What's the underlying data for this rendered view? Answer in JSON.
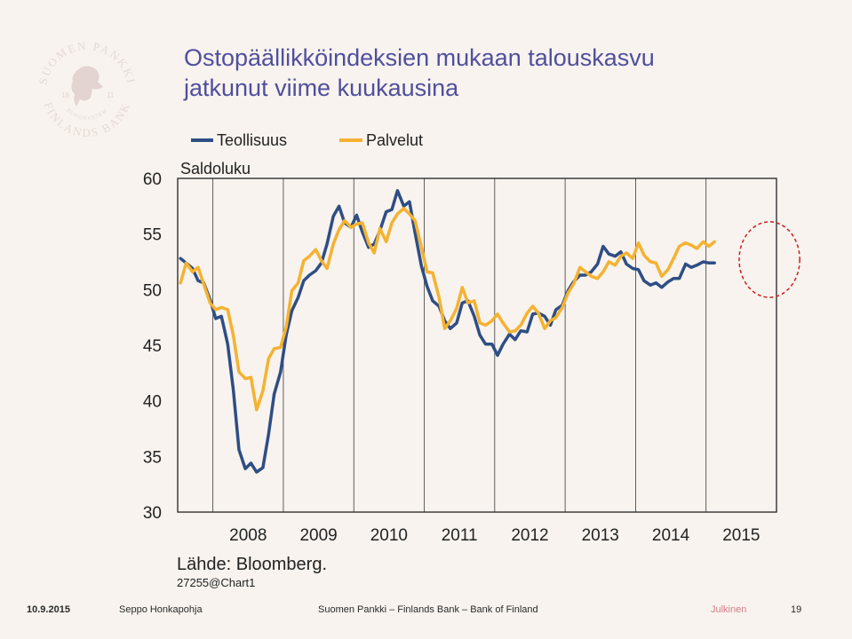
{
  "title_lines": [
    "Ostopäällikköindeksien mukaan talouskasvu",
    "jatkunut viime kuukausina"
  ],
  "logo": {
    "text_top": "SUOMEN PANKKI",
    "text_bottom": "FINLANDS BANK",
    "text_inner": "EUROSYSTEM",
    "year_left": "18",
    "year_right": "11",
    "icon": "lion-crest-icon"
  },
  "chart_data": {
    "type": "line",
    "ylabel": "Saldoluku",
    "ylim": [
      30,
      60
    ],
    "yticks": [
      30,
      35,
      40,
      45,
      50,
      55,
      60
    ],
    "xlim": [
      2007.5,
      2016
    ],
    "xticks": [
      {
        "label": "2008",
        "value": 2008.5
      },
      {
        "label": "2009",
        "value": 2009.5
      },
      {
        "label": "2010",
        "value": 2010.5
      },
      {
        "label": "2011",
        "value": 2011.5
      },
      {
        "label": "2012",
        "value": 2012.5
      },
      {
        "label": "2013",
        "value": 2013.5
      },
      {
        "label": "2014",
        "value": 2014.5
      },
      {
        "label": "2015",
        "value": 2015.5
      }
    ],
    "vgrid": [
      2008,
      2009,
      2010,
      2011,
      2012,
      2013,
      2014,
      2015
    ],
    "legend_position": "top",
    "highlight": {
      "x_center": 2015.9,
      "y_center": 52.7,
      "x_radius": 0.43,
      "y_radius": 3.4,
      "color": "#cc1f1f"
    },
    "series": [
      {
        "name": "Teollisuus",
        "color": "#2e4e84",
        "points": [
          [
            2007.54,
            52.8
          ],
          [
            2007.62,
            52.4
          ],
          [
            2007.71,
            51.9
          ],
          [
            2007.79,
            50.8
          ],
          [
            2007.87,
            50.6
          ],
          [
            2007.96,
            49.1
          ],
          [
            2008.04,
            47.4
          ],
          [
            2008.12,
            47.6
          ],
          [
            2008.21,
            45.1
          ],
          [
            2008.29,
            41.0
          ],
          [
            2008.37,
            35.6
          ],
          [
            2008.46,
            33.9
          ],
          [
            2008.54,
            34.4
          ],
          [
            2008.62,
            33.6
          ],
          [
            2008.71,
            34.0
          ],
          [
            2008.79,
            37.0
          ],
          [
            2008.87,
            40.6
          ],
          [
            2008.96,
            42.6
          ],
          [
            2009.04,
            45.9
          ],
          [
            2009.12,
            48.1
          ],
          [
            2009.21,
            49.3
          ],
          [
            2009.29,
            50.8
          ],
          [
            2009.37,
            51.3
          ],
          [
            2009.46,
            51.7
          ],
          [
            2009.54,
            52.4
          ],
          [
            2009.62,
            54.1
          ],
          [
            2009.71,
            56.6
          ],
          [
            2009.79,
            57.5
          ],
          [
            2009.87,
            56.0
          ],
          [
            2009.96,
            55.6
          ],
          [
            2010.04,
            56.7
          ],
          [
            2010.12,
            55.2
          ],
          [
            2010.21,
            53.8
          ],
          [
            2010.29,
            54.1
          ],
          [
            2010.37,
            55.3
          ],
          [
            2010.46,
            57.0
          ],
          [
            2010.54,
            57.2
          ],
          [
            2010.62,
            58.9
          ],
          [
            2010.71,
            57.5
          ],
          [
            2010.79,
            57.9
          ],
          [
            2010.87,
            55.1
          ],
          [
            2010.96,
            52.1
          ],
          [
            2011.04,
            50.3
          ],
          [
            2011.12,
            49.0
          ],
          [
            2011.21,
            48.5
          ],
          [
            2011.29,
            47.2
          ],
          [
            2011.37,
            46.5
          ],
          [
            2011.46,
            47.0
          ],
          [
            2011.54,
            48.8
          ],
          [
            2011.62,
            49.0
          ],
          [
            2011.71,
            47.6
          ],
          [
            2011.79,
            45.9
          ],
          [
            2011.87,
            45.1
          ],
          [
            2011.96,
            45.1
          ],
          [
            2012.04,
            44.1
          ],
          [
            2012.12,
            45.1
          ],
          [
            2012.21,
            46.0
          ],
          [
            2012.29,
            45.5
          ],
          [
            2012.37,
            46.3
          ],
          [
            2012.46,
            46.2
          ],
          [
            2012.54,
            47.8
          ],
          [
            2012.62,
            47.9
          ],
          [
            2012.71,
            47.6
          ],
          [
            2012.79,
            46.8
          ],
          [
            2012.87,
            48.2
          ],
          [
            2012.96,
            48.6
          ],
          [
            2013.04,
            49.9
          ],
          [
            2013.12,
            50.7
          ],
          [
            2013.21,
            51.3
          ],
          [
            2013.29,
            51.3
          ],
          [
            2013.37,
            51.6
          ],
          [
            2013.46,
            52.3
          ],
          [
            2013.54,
            53.9
          ],
          [
            2013.62,
            53.2
          ],
          [
            2013.71,
            53.0
          ],
          [
            2013.79,
            53.4
          ],
          [
            2013.87,
            52.3
          ],
          [
            2013.96,
            51.9
          ],
          [
            2014.04,
            51.8
          ],
          [
            2014.12,
            50.8
          ],
          [
            2014.21,
            50.4
          ],
          [
            2014.29,
            50.6
          ],
          [
            2014.37,
            50.2
          ],
          [
            2014.46,
            50.7
          ],
          [
            2014.54,
            51.0
          ],
          [
            2014.62,
            51.0
          ],
          [
            2014.71,
            52.3
          ],
          [
            2014.79,
            52.0
          ],
          [
            2014.87,
            52.2
          ],
          [
            2014.96,
            52.5
          ],
          [
            2015.04,
            52.4
          ],
          [
            2015.12,
            52.4
          ]
        ]
      },
      {
        "name": "Palvelut",
        "color": "#f5b231",
        "points": [
          [
            2007.54,
            50.6
          ],
          [
            2007.62,
            52.4
          ],
          [
            2007.71,
            51.6
          ],
          [
            2007.79,
            52.0
          ],
          [
            2007.87,
            50.5
          ],
          [
            2007.96,
            48.8
          ],
          [
            2008.04,
            48.2
          ],
          [
            2008.12,
            48.4
          ],
          [
            2008.21,
            48.2
          ],
          [
            2008.29,
            45.9
          ],
          [
            2008.37,
            42.6
          ],
          [
            2008.46,
            42.0
          ],
          [
            2008.54,
            42.1
          ],
          [
            2008.62,
            39.2
          ],
          [
            2008.71,
            40.9
          ],
          [
            2008.79,
            43.8
          ],
          [
            2008.87,
            44.7
          ],
          [
            2008.96,
            44.8
          ],
          [
            2009.04,
            46.6
          ],
          [
            2009.12,
            49.9
          ],
          [
            2009.21,
            50.6
          ],
          [
            2009.29,
            52.6
          ],
          [
            2009.37,
            53.0
          ],
          [
            2009.46,
            53.6
          ],
          [
            2009.54,
            52.6
          ],
          [
            2009.62,
            51.9
          ],
          [
            2009.71,
            54.1
          ],
          [
            2009.79,
            55.4
          ],
          [
            2009.87,
            56.2
          ],
          [
            2009.96,
            55.6
          ],
          [
            2010.04,
            55.9
          ],
          [
            2010.12,
            56.0
          ],
          [
            2010.21,
            54.2
          ],
          [
            2010.29,
            53.3
          ],
          [
            2010.37,
            55.5
          ],
          [
            2010.46,
            54.3
          ],
          [
            2010.54,
            56.0
          ],
          [
            2010.62,
            56.8
          ],
          [
            2010.71,
            57.3
          ],
          [
            2010.79,
            56.8
          ],
          [
            2010.87,
            56.2
          ],
          [
            2010.96,
            53.8
          ],
          [
            2011.04,
            51.6
          ],
          [
            2011.12,
            51.5
          ],
          [
            2011.21,
            49.3
          ],
          [
            2011.29,
            46.5
          ],
          [
            2011.37,
            47.2
          ],
          [
            2011.46,
            48.3
          ],
          [
            2011.54,
            50.2
          ],
          [
            2011.62,
            48.8
          ],
          [
            2011.71,
            49.0
          ],
          [
            2011.79,
            47.0
          ],
          [
            2011.87,
            46.8
          ],
          [
            2011.96,
            47.2
          ],
          [
            2012.04,
            47.8
          ],
          [
            2012.12,
            47.0
          ],
          [
            2012.21,
            46.2
          ],
          [
            2012.29,
            46.3
          ],
          [
            2012.37,
            46.8
          ],
          [
            2012.46,
            47.9
          ],
          [
            2012.54,
            48.5
          ],
          [
            2012.62,
            47.9
          ],
          [
            2012.71,
            46.5
          ],
          [
            2012.79,
            47.2
          ],
          [
            2012.87,
            47.5
          ],
          [
            2012.96,
            48.4
          ],
          [
            2013.04,
            49.7
          ],
          [
            2013.12,
            50.5
          ],
          [
            2013.21,
            52.0
          ],
          [
            2013.29,
            51.6
          ],
          [
            2013.37,
            51.2
          ],
          [
            2013.46,
            51.0
          ],
          [
            2013.54,
            51.6
          ],
          [
            2013.62,
            52.5
          ],
          [
            2013.71,
            52.2
          ],
          [
            2013.79,
            53.0
          ],
          [
            2013.87,
            53.3
          ],
          [
            2013.96,
            52.8
          ],
          [
            2014.04,
            54.2
          ],
          [
            2014.12,
            53.1
          ],
          [
            2014.21,
            52.5
          ],
          [
            2014.29,
            52.4
          ],
          [
            2014.37,
            51.2
          ],
          [
            2014.46,
            51.8
          ],
          [
            2014.54,
            52.8
          ],
          [
            2014.62,
            53.9
          ],
          [
            2014.71,
            54.2
          ],
          [
            2014.79,
            54.0
          ],
          [
            2014.87,
            53.7
          ],
          [
            2014.96,
            54.3
          ],
          [
            2015.04,
            53.9
          ],
          [
            2015.12,
            54.3
          ]
        ]
      }
    ]
  },
  "source_note": "Lähde: Bloomberg.",
  "chart_code": "27255@Chart1",
  "footer": {
    "date": "10.9.2015",
    "author": "Seppo Honkapohja",
    "organization": "Suomen Pankki – Finlands Bank – Bank of Finland",
    "classification": "Julkinen",
    "page": "19"
  }
}
